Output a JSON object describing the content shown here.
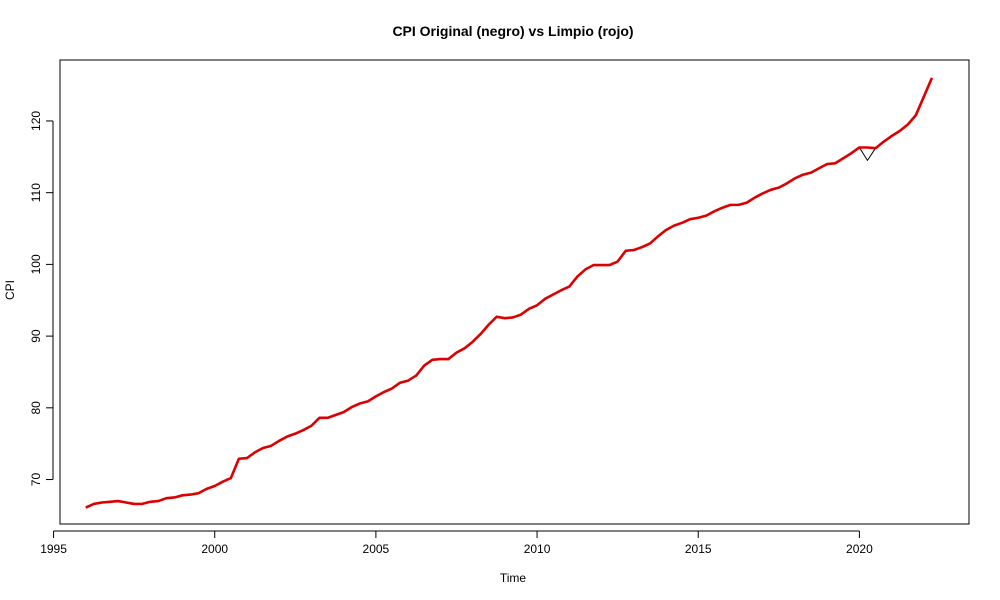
{
  "chart_data": {
    "type": "line",
    "title": "CPI Original (negro) vs Limpio (rojo)",
    "xlabel": "Time",
    "ylabel": "CPI",
    "xlim": [
      1995.2,
      2023.4
    ],
    "ylim": [
      63.8,
      128.5
    ],
    "x_ticks": [
      1995,
      2000,
      2005,
      2010,
      2015,
      2020
    ],
    "y_ticks": [
      70,
      80,
      90,
      100,
      110,
      120
    ],
    "grid": false,
    "legend": "none",
    "colors": {
      "original": "#000000",
      "limpio": "#dd0000"
    },
    "series": [
      {
        "key": "original",
        "values": [
          [
            1996.0,
            66.1
          ],
          [
            1996.25,
            66.6
          ],
          [
            1996.5,
            66.8
          ],
          [
            1996.75,
            66.9
          ],
          [
            1997.0,
            67.0
          ],
          [
            1997.25,
            66.8
          ],
          [
            1997.5,
            66.6
          ],
          [
            1997.75,
            66.6
          ],
          [
            1998.0,
            66.9
          ],
          [
            1998.25,
            67.0
          ],
          [
            1998.5,
            67.4
          ],
          [
            1998.75,
            67.5
          ],
          [
            1999.0,
            67.8
          ],
          [
            1999.25,
            67.9
          ],
          [
            1999.5,
            68.1
          ],
          [
            1999.75,
            68.7
          ],
          [
            2000.0,
            69.1
          ],
          [
            2000.25,
            69.7
          ],
          [
            2000.5,
            70.2
          ],
          [
            2000.75,
            72.9
          ],
          [
            2001.0,
            73.0
          ],
          [
            2001.25,
            73.8
          ],
          [
            2001.5,
            74.4
          ],
          [
            2001.75,
            74.7
          ],
          [
            2002.0,
            75.4
          ],
          [
            2002.25,
            76.0
          ],
          [
            2002.5,
            76.4
          ],
          [
            2002.75,
            76.9
          ],
          [
            2003.0,
            77.5
          ],
          [
            2003.25,
            78.6
          ],
          [
            2003.5,
            78.6
          ],
          [
            2003.75,
            79.0
          ],
          [
            2004.0,
            79.4
          ],
          [
            2004.25,
            80.1
          ],
          [
            2004.5,
            80.6
          ],
          [
            2004.75,
            80.9
          ],
          [
            2005.0,
            81.6
          ],
          [
            2005.25,
            82.2
          ],
          [
            2005.5,
            82.7
          ],
          [
            2005.75,
            83.5
          ],
          [
            2006.0,
            83.8
          ],
          [
            2006.25,
            84.5
          ],
          [
            2006.5,
            85.9
          ],
          [
            2006.75,
            86.7
          ],
          [
            2007.0,
            86.8
          ],
          [
            2007.25,
            86.8
          ],
          [
            2007.5,
            87.7
          ],
          [
            2007.75,
            88.3
          ],
          [
            2008.0,
            89.2
          ],
          [
            2008.25,
            90.3
          ],
          [
            2008.5,
            91.6
          ],
          [
            2008.75,
            92.7
          ],
          [
            2009.0,
            92.5
          ],
          [
            2009.25,
            92.6
          ],
          [
            2009.5,
            93.0
          ],
          [
            2009.75,
            93.8
          ],
          [
            2010.0,
            94.3
          ],
          [
            2010.25,
            95.2
          ],
          [
            2010.5,
            95.8
          ],
          [
            2010.75,
            96.4
          ],
          [
            2011.0,
            96.9
          ],
          [
            2011.25,
            98.3
          ],
          [
            2011.5,
            99.3
          ],
          [
            2011.75,
            99.9
          ],
          [
            2012.0,
            99.9
          ],
          [
            2012.25,
            99.9
          ],
          [
            2012.5,
            100.4
          ],
          [
            2012.75,
            101.9
          ],
          [
            2013.0,
            102.0
          ],
          [
            2013.25,
            102.4
          ],
          [
            2013.5,
            102.9
          ],
          [
            2013.75,
            103.9
          ],
          [
            2014.0,
            104.8
          ],
          [
            2014.25,
            105.4
          ],
          [
            2014.5,
            105.8
          ],
          [
            2014.75,
            106.3
          ],
          [
            2015.0,
            106.5
          ],
          [
            2015.25,
            106.8
          ],
          [
            2015.5,
            107.4
          ],
          [
            2015.75,
            107.9
          ],
          [
            2016.0,
            108.3
          ],
          [
            2016.25,
            108.3
          ],
          [
            2016.5,
            108.6
          ],
          [
            2016.75,
            109.3
          ],
          [
            2017.0,
            109.9
          ],
          [
            2017.25,
            110.4
          ],
          [
            2017.5,
            110.7
          ],
          [
            2017.75,
            111.3
          ],
          [
            2018.0,
            112.0
          ],
          [
            2018.25,
            112.5
          ],
          [
            2018.5,
            112.8
          ],
          [
            2018.75,
            113.4
          ],
          [
            2019.0,
            114.0
          ],
          [
            2019.25,
            114.1
          ],
          [
            2019.5,
            114.8
          ],
          [
            2019.75,
            115.5
          ],
          [
            2020.0,
            116.3
          ],
          [
            2020.25,
            114.5
          ],
          [
            2020.5,
            116.2
          ],
          [
            2020.75,
            117.1
          ],
          [
            2021.0,
            117.9
          ],
          [
            2021.25,
            118.6
          ],
          [
            2021.5,
            119.5
          ],
          [
            2021.75,
            120.8
          ],
          [
            2022.0,
            123.4
          ],
          [
            2022.25,
            126.0
          ]
        ]
      },
      {
        "key": "limpio",
        "values": [
          [
            1996.0,
            66.1
          ],
          [
            1996.25,
            66.6
          ],
          [
            1996.5,
            66.8
          ],
          [
            1996.75,
            66.9
          ],
          [
            1997.0,
            67.0
          ],
          [
            1997.25,
            66.8
          ],
          [
            1997.5,
            66.6
          ],
          [
            1997.75,
            66.6
          ],
          [
            1998.0,
            66.9
          ],
          [
            1998.25,
            67.0
          ],
          [
            1998.5,
            67.4
          ],
          [
            1998.75,
            67.5
          ],
          [
            1999.0,
            67.8
          ],
          [
            1999.25,
            67.9
          ],
          [
            1999.5,
            68.1
          ],
          [
            1999.75,
            68.7
          ],
          [
            2000.0,
            69.1
          ],
          [
            2000.25,
            69.7
          ],
          [
            2000.5,
            70.2
          ],
          [
            2000.75,
            72.9
          ],
          [
            2001.0,
            73.0
          ],
          [
            2001.25,
            73.8
          ],
          [
            2001.5,
            74.4
          ],
          [
            2001.75,
            74.7
          ],
          [
            2002.0,
            75.4
          ],
          [
            2002.25,
            76.0
          ],
          [
            2002.5,
            76.4
          ],
          [
            2002.75,
            76.9
          ],
          [
            2003.0,
            77.5
          ],
          [
            2003.25,
            78.6
          ],
          [
            2003.5,
            78.6
          ],
          [
            2003.75,
            79.0
          ],
          [
            2004.0,
            79.4
          ],
          [
            2004.25,
            80.1
          ],
          [
            2004.5,
            80.6
          ],
          [
            2004.75,
            80.9
          ],
          [
            2005.0,
            81.6
          ],
          [
            2005.25,
            82.2
          ],
          [
            2005.5,
            82.7
          ],
          [
            2005.75,
            83.5
          ],
          [
            2006.0,
            83.8
          ],
          [
            2006.25,
            84.5
          ],
          [
            2006.5,
            85.9
          ],
          [
            2006.75,
            86.7
          ],
          [
            2007.0,
            86.8
          ],
          [
            2007.25,
            86.8
          ],
          [
            2007.5,
            87.7
          ],
          [
            2007.75,
            88.3
          ],
          [
            2008.0,
            89.2
          ],
          [
            2008.25,
            90.3
          ],
          [
            2008.5,
            91.6
          ],
          [
            2008.75,
            92.7
          ],
          [
            2009.0,
            92.5
          ],
          [
            2009.25,
            92.6
          ],
          [
            2009.5,
            93.0
          ],
          [
            2009.75,
            93.8
          ],
          [
            2010.0,
            94.3
          ],
          [
            2010.25,
            95.2
          ],
          [
            2010.5,
            95.8
          ],
          [
            2010.75,
            96.4
          ],
          [
            2011.0,
            96.9
          ],
          [
            2011.25,
            98.3
          ],
          [
            2011.5,
            99.3
          ],
          [
            2011.75,
            99.9
          ],
          [
            2012.0,
            99.9
          ],
          [
            2012.25,
            99.9
          ],
          [
            2012.5,
            100.4
          ],
          [
            2012.75,
            101.9
          ],
          [
            2013.0,
            102.0
          ],
          [
            2013.25,
            102.4
          ],
          [
            2013.5,
            102.9
          ],
          [
            2013.75,
            103.9
          ],
          [
            2014.0,
            104.8
          ],
          [
            2014.25,
            105.4
          ],
          [
            2014.5,
            105.8
          ],
          [
            2014.75,
            106.3
          ],
          [
            2015.0,
            106.5
          ],
          [
            2015.25,
            106.8
          ],
          [
            2015.5,
            107.4
          ],
          [
            2015.75,
            107.9
          ],
          [
            2016.0,
            108.3
          ],
          [
            2016.25,
            108.3
          ],
          [
            2016.5,
            108.6
          ],
          [
            2016.75,
            109.3
          ],
          [
            2017.0,
            109.9
          ],
          [
            2017.25,
            110.4
          ],
          [
            2017.5,
            110.7
          ],
          [
            2017.75,
            111.3
          ],
          [
            2018.0,
            112.0
          ],
          [
            2018.25,
            112.5
          ],
          [
            2018.5,
            112.8
          ],
          [
            2018.75,
            113.4
          ],
          [
            2019.0,
            114.0
          ],
          [
            2019.25,
            114.1
          ],
          [
            2019.5,
            114.8
          ],
          [
            2019.75,
            115.5
          ],
          [
            2020.0,
            116.3
          ],
          [
            2020.25,
            116.3
          ],
          [
            2020.5,
            116.2
          ],
          [
            2020.75,
            117.1
          ],
          [
            2021.0,
            117.9
          ],
          [
            2021.25,
            118.6
          ],
          [
            2021.5,
            119.5
          ],
          [
            2021.75,
            120.8
          ],
          [
            2022.0,
            123.4
          ],
          [
            2022.25,
            126.0
          ]
        ]
      }
    ]
  }
}
